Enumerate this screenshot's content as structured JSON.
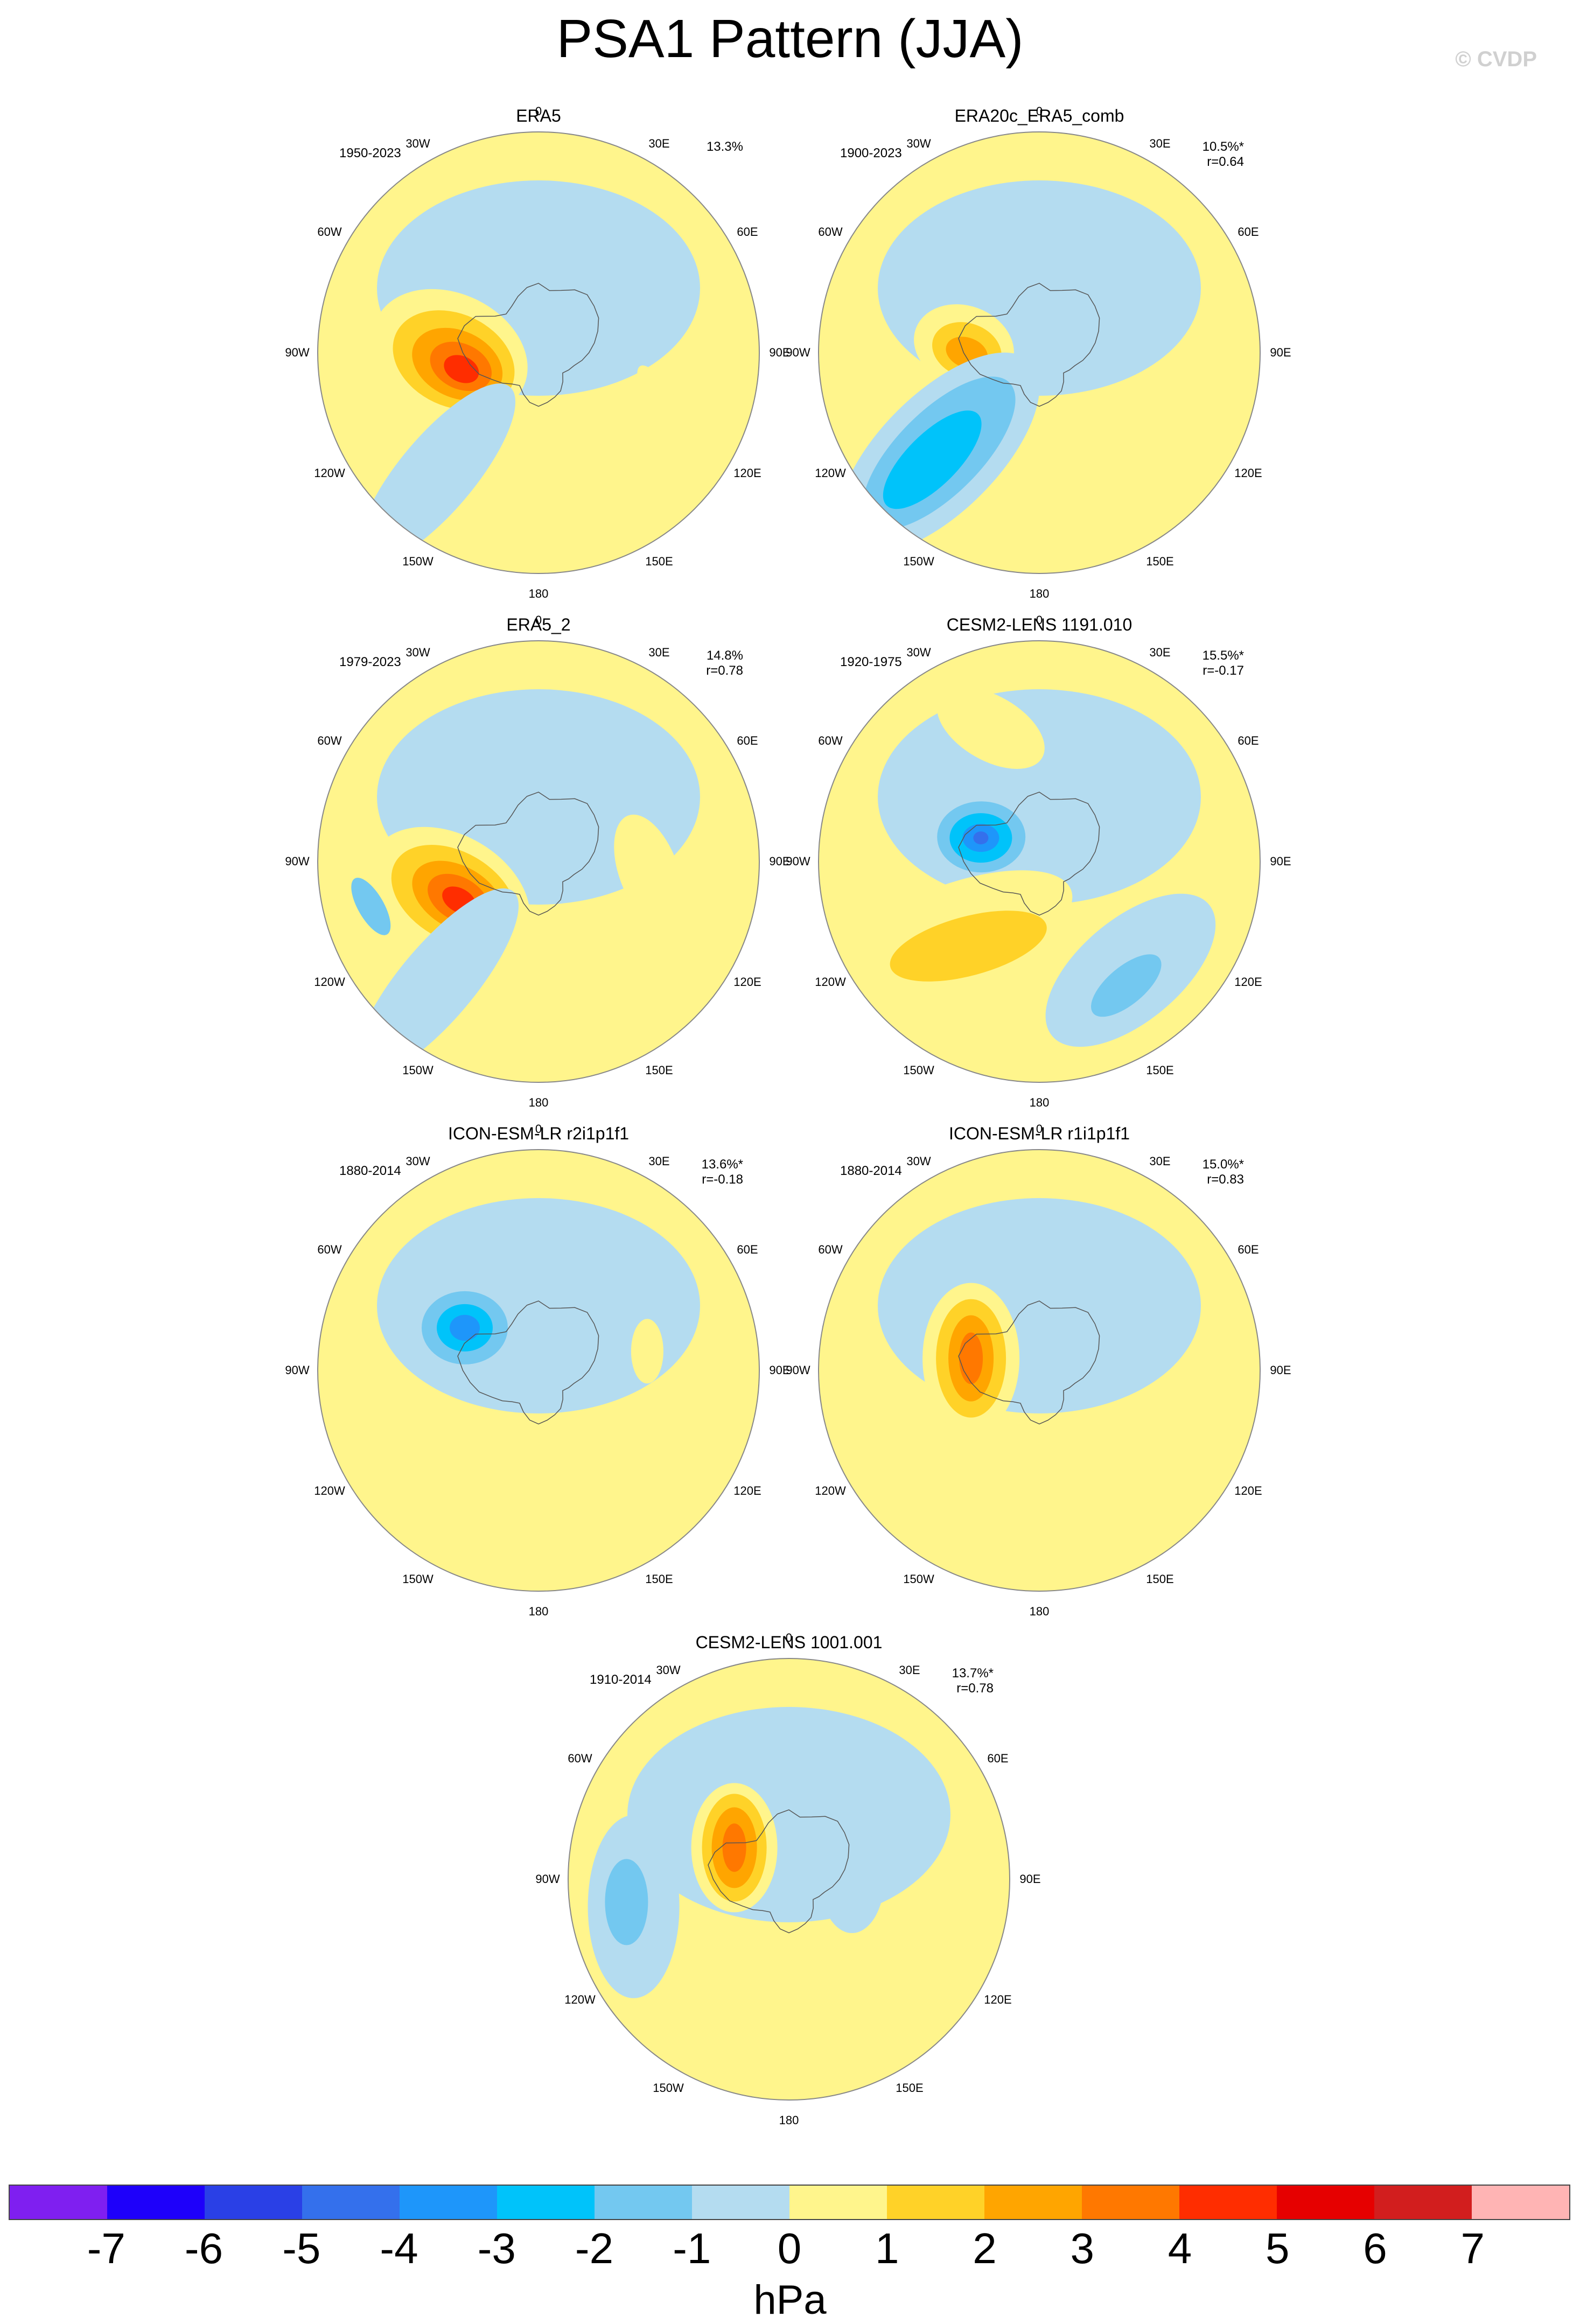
{
  "figure": {
    "title": "PSA1 Pattern (JJA)",
    "copyright": "© CVDP",
    "units": "hPa"
  },
  "longitude_labels": [
    "0",
    "30E",
    "60E",
    "90E",
    "120E",
    "150E",
    "180",
    "150W",
    "120W",
    "90W",
    "60W",
    "30W"
  ],
  "colorbar": {
    "colors": [
      "#7f1ff0",
      "#1e00fa",
      "#2a40e6",
      "#3470ec",
      "#1e96fa",
      "#00c3fa",
      "#73c8f0",
      "#b4dcf0",
      "#fff58c",
      "#ffd228",
      "#ffa500",
      "#ff7800",
      "#ff2d00",
      "#e60000",
      "#d21e1e",
      "#ffb4b4"
    ],
    "tick_labels": [
      "-7",
      "-6",
      "-5",
      "-4",
      "-3",
      "-2",
      "-1",
      "0",
      "1",
      "2",
      "3",
      "4",
      "5",
      "6",
      "7"
    ]
  },
  "panels": [
    {
      "title": "ERA5",
      "years": "1950-2023",
      "pct": "13.3%",
      "r": "",
      "features": [
        {
          "level": 1,
          "lon": 270,
          "lat": -62,
          "major": 150,
          "minor": 110,
          "angle": 25
        },
        {
          "level": 2,
          "lon": 265,
          "lat": -63,
          "major": 118,
          "minor": 86,
          "angle": 25
        },
        {
          "level": 3,
          "lon": 262,
          "lat": -64,
          "major": 88,
          "minor": 62,
          "angle": 25
        },
        {
          "level": 4,
          "lon": 260,
          "lat": -65,
          "major": 60,
          "minor": 42,
          "angle": 25
        },
        {
          "level": 5,
          "lon": 258,
          "lat": -65,
          "major": 34,
          "minor": 24,
          "angle": 25
        },
        {
          "level": -1,
          "lon": 220,
          "lat": -40,
          "major": 210,
          "minor": 70,
          "angle": -50
        },
        {
          "level": -1,
          "lon": 15,
          "lat": -75,
          "major": 90,
          "minor": 40,
          "angle": 10
        },
        {
          "level": 1,
          "lon": 115,
          "lat": -45,
          "major": 100,
          "minor": 28,
          "angle": 60
        }
      ]
    },
    {
      "title": "ERA20c_ERA5_comb",
      "years": "1900-2023",
      "pct": "10.5%*",
      "r": "r=0.64",
      "features": [
        {
          "level": 1,
          "lon": 275,
          "lat": -66,
          "major": 95,
          "minor": 75,
          "angle": 20
        },
        {
          "level": 2,
          "lon": 272,
          "lat": -67,
          "major": 66,
          "minor": 50,
          "angle": 20
        },
        {
          "level": 3,
          "lon": 270,
          "lat": -67,
          "major": 40,
          "minor": 28,
          "angle": 20
        },
        {
          "level": -1,
          "lon": 225,
          "lat": -45,
          "major": 240,
          "minor": 110,
          "angle": -45
        },
        {
          "level": -2,
          "lon": 225,
          "lat": -45,
          "major": 185,
          "minor": 78,
          "angle": -45
        },
        {
          "level": -3,
          "lon": 225,
          "lat": -42,
          "major": 120,
          "minor": 48,
          "angle": -45
        },
        {
          "level": -1,
          "lon": 60,
          "lat": -75,
          "major": 110,
          "minor": 70,
          "angle": 0
        }
      ]
    },
    {
      "title": "ERA5_2",
      "years": "1979-2023",
      "pct": "14.8%",
      "r": "r=0.78",
      "features": [
        {
          "level": 1,
          "lon": 250,
          "lat": -60,
          "major": 160,
          "minor": 110,
          "angle": 30
        },
        {
          "level": 2,
          "lon": 248,
          "lat": -61,
          "major": 125,
          "minor": 82,
          "angle": 30
        },
        {
          "level": 3,
          "lon": 246,
          "lat": -62,
          "major": 92,
          "minor": 58,
          "angle": 30
        },
        {
          "level": 4,
          "lon": 245,
          "lat": -62,
          "major": 62,
          "minor": 40,
          "angle": 30
        },
        {
          "level": 5,
          "lon": 244,
          "lat": -62,
          "major": 34,
          "minor": 22,
          "angle": 30
        },
        {
          "level": -1,
          "lon": 220,
          "lat": -40,
          "major": 220,
          "minor": 70,
          "angle": -50
        },
        {
          "level": -2,
          "lon": 255,
          "lat": -35,
          "major": 60,
          "minor": 24,
          "angle": 60
        },
        {
          "level": 1,
          "lon": 95,
          "lat": -55,
          "major": 110,
          "minor": 55,
          "angle": 70
        }
      ]
    },
    {
      "title": "CESM2-LENS 1191.010",
      "years": "1920-1975",
      "pct": "15.5%*",
      "r": "r=-0.17",
      "features": [
        {
          "level": -1,
          "lon": 295,
          "lat": -70,
          "major": 110,
          "minor": 90,
          "angle": 0
        },
        {
          "level": -2,
          "lon": 293,
          "lat": -70,
          "major": 82,
          "minor": 66,
          "angle": 0
        },
        {
          "level": -3,
          "lon": 292,
          "lat": -70,
          "major": 58,
          "minor": 46,
          "angle": 0
        },
        {
          "level": -4,
          "lon": 292,
          "lat": -70,
          "major": 34,
          "minor": 26,
          "angle": 0
        },
        {
          "level": -5,
          "lon": 292,
          "lat": -70,
          "major": 14,
          "minor": 12,
          "angle": 0
        },
        {
          "level": 1,
          "lon": 230,
          "lat": -55,
          "major": 230,
          "minor": 90,
          "angle": -20
        },
        {
          "level": 2,
          "lon": 220,
          "lat": -55,
          "major": 150,
          "minor": 55,
          "angle": -15
        },
        {
          "level": 1,
          "lon": 340,
          "lat": -45,
          "major": 110,
          "minor": 60,
          "angle": 30
        },
        {
          "level": -1,
          "lon": 140,
          "lat": -45,
          "major": 190,
          "minor": 95,
          "angle": -40
        },
        {
          "level": -2,
          "lon": 145,
          "lat": -42,
          "major": 80,
          "minor": 35,
          "angle": -40
        }
      ]
    },
    {
      "title": "ICON-ESM-LR r2i1p1f1",
      "years": "1880-2014",
      "pct": "13.6%*",
      "r": "r=-0.18",
      "features": [
        {
          "level": -1,
          "lon": 300,
          "lat": -62,
          "major": 110,
          "minor": 95,
          "angle": 0
        },
        {
          "level": -2,
          "lon": 300,
          "lat": -63,
          "major": 80,
          "minor": 68,
          "angle": 0
        },
        {
          "level": -3,
          "lon": 300,
          "lat": -63,
          "major": 52,
          "minor": 44,
          "angle": 0
        },
        {
          "level": -4,
          "lon": 300,
          "lat": -63,
          "major": 28,
          "minor": 24,
          "angle": 0
        },
        {
          "level": 1,
          "lon": 195,
          "lat": -68,
          "major": 70,
          "minor": 35,
          "angle": 30
        },
        {
          "level": 1,
          "lon": 80,
          "lat": -55,
          "major": 60,
          "minor": 30,
          "angle": 90
        }
      ]
    },
    {
      "title": "ICON-ESM-LR r1i1p1f1",
      "years": "1880-2014",
      "pct": "15.0%*",
      "r": "r=0.83",
      "features": [
        {
          "level": 1,
          "lon": 280,
          "lat": -68,
          "major": 140,
          "minor": 90,
          "angle": 90
        },
        {
          "level": 2,
          "lon": 280,
          "lat": -68,
          "major": 110,
          "minor": 65,
          "angle": 90
        },
        {
          "level": 3,
          "lon": 280,
          "lat": -68,
          "major": 80,
          "minor": 42,
          "angle": 90
        },
        {
          "level": 4,
          "lon": 280,
          "lat": -68,
          "major": 48,
          "minor": 22,
          "angle": 90
        },
        {
          "level": -1,
          "lon": 100,
          "lat": -78,
          "major": 50,
          "minor": 40,
          "angle": 0
        },
        {
          "level": -1,
          "lon": 40,
          "lat": -48,
          "major": 50,
          "minor": 18,
          "angle": 0
        }
      ]
    },
    {
      "title": "CESM2-LENS 1001.001",
      "years": "1910-2014",
      "pct": "13.7%*",
      "r": "r=0.78",
      "features": [
        {
          "level": 1,
          "lon": 300,
          "lat": -70,
          "major": 120,
          "minor": 80,
          "angle": 90
        },
        {
          "level": 2,
          "lon": 300,
          "lat": -70,
          "major": 100,
          "minor": 60,
          "angle": 90
        },
        {
          "level": 3,
          "lon": 300,
          "lat": -70,
          "major": 75,
          "minor": 42,
          "angle": 90
        },
        {
          "level": 4,
          "lon": 300,
          "lat": -70,
          "major": 45,
          "minor": 22,
          "angle": 90
        },
        {
          "level": -1,
          "lon": 260,
          "lat": -40,
          "major": 170,
          "minor": 85,
          "angle": 90
        },
        {
          "level": -2,
          "lon": 262,
          "lat": -38,
          "major": 80,
          "minor": 40,
          "angle": 90
        },
        {
          "level": -1,
          "lon": 90,
          "lat": -70,
          "major": 100,
          "minor": 60,
          "angle": 90
        },
        {
          "level": 1,
          "lon": 140,
          "lat": -40,
          "major": 170,
          "minor": 50,
          "angle": -40
        }
      ]
    }
  ]
}
